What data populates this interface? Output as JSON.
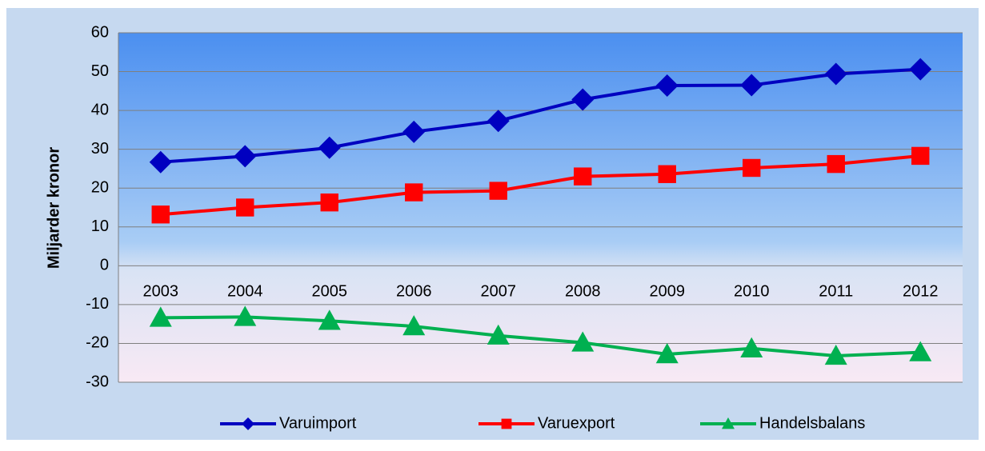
{
  "chart_data": {
    "type": "line",
    "y_label": "Miljarder kronor",
    "categories": [
      "2003",
      "2004",
      "2005",
      "2006",
      "2007",
      "2008",
      "2009",
      "2010",
      "2011",
      "2012"
    ],
    "series": [
      {
        "name": "Varuimport",
        "color": "#0000c0",
        "marker": "diamond",
        "values": [
          26.7,
          28.2,
          30.4,
          34.5,
          37.3,
          42.8,
          46.4,
          46.5,
          49.4,
          50.6
        ]
      },
      {
        "name": "Varuexport",
        "color": "#ff0000",
        "marker": "square",
        "values": [
          13.2,
          15.0,
          16.3,
          18.9,
          19.3,
          23.0,
          23.6,
          25.2,
          26.2,
          28.3
        ]
      },
      {
        "name": "Handelsbalans",
        "color": "#00b050",
        "marker": "triangle",
        "values": [
          -13.4,
          -13.2,
          -14.2,
          -15.6,
          -18.0,
          -19.8,
          -22.8,
          -21.3,
          -23.2,
          -22.3
        ]
      }
    ],
    "ylim": [
      -30,
      60
    ],
    "yticks": [
      -30,
      -20,
      -10,
      0,
      10,
      20,
      30,
      40,
      50,
      60
    ],
    "grid": true,
    "legend": "bottom"
  }
}
